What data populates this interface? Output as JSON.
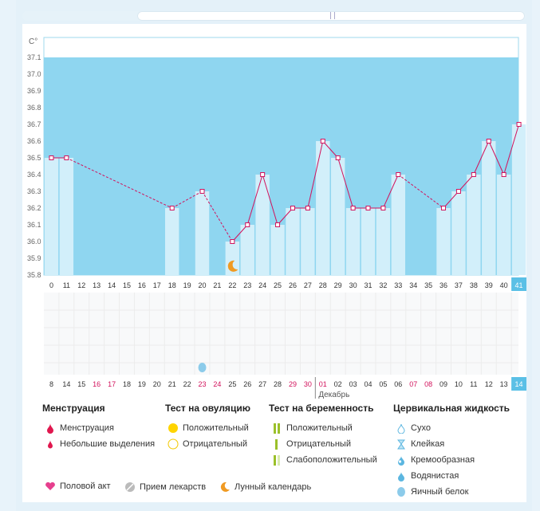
{
  "chart_data": {
    "type": "line",
    "title": "",
    "ylabel": "C°",
    "ylim": [
      35.8,
      37.2
    ],
    "yticks": [
      "35.8",
      "35.9",
      "36.0",
      "36.1",
      "36.2",
      "36.3",
      "36.4",
      "36.5",
      "36.6",
      "36.7",
      "36.8",
      "36.9",
      "37.0",
      "37.1"
    ],
    "cycle_days": [
      "0",
      "11",
      "12",
      "13",
      "14",
      "15",
      "16",
      "17",
      "18",
      "19",
      "20",
      "21",
      "22",
      "23",
      "24",
      "25",
      "26",
      "27",
      "28",
      "29",
      "30",
      "31",
      "32",
      "33",
      "34",
      "35",
      "36",
      "37",
      "38",
      "39",
      "40",
      "41"
    ],
    "dates": [
      "8",
      "14",
      "15",
      "16",
      "17",
      "18",
      "19",
      "20",
      "21",
      "22",
      "23",
      "24",
      "25",
      "26",
      "27",
      "28",
      "29",
      "30",
      "01",
      "02",
      "03",
      "04",
      "05",
      "06",
      "07",
      "08",
      "09",
      "10",
      "11",
      "12",
      "13",
      "14"
    ],
    "weekend_dates_idx": [
      3,
      4,
      10,
      11,
      16,
      17,
      18,
      24,
      25
    ],
    "month_label": "Декабрь",
    "month_start_idx": 18,
    "values": [
      36.5,
      36.5,
      null,
      null,
      null,
      null,
      null,
      null,
      36.2,
      null,
      36.3,
      null,
      36.0,
      36.1,
      36.4,
      36.1,
      36.2,
      36.2,
      36.6,
      36.5,
      36.2,
      36.2,
      36.2,
      36.4,
      null,
      null,
      36.2,
      36.3,
      36.4,
      36.6,
      36.4,
      36.7
    ],
    "moon_idx": 12,
    "drop_idx": 10,
    "highlight_idx": 31
  },
  "legend": {
    "menstruation": {
      "title": "Менструация",
      "items": [
        "Менструация",
        "Небольшие выделения"
      ]
    },
    "ovulation": {
      "title": "Тест на овуляцию",
      "items": [
        "Положительный",
        "Отрицательный"
      ]
    },
    "pregnancy": {
      "title": "Тест на беременность",
      "items": [
        "Положительный",
        "Отрицательный",
        "Слабоположительный"
      ]
    },
    "cervical": {
      "title": "Цервикальная жидкость",
      "items": [
        "Сухо",
        "Клейкая",
        "Кремообразная",
        "Водянистая",
        "Яичный белок"
      ]
    },
    "footer": [
      "Половой акт",
      "Прием лекарств",
      "Лунный календарь"
    ]
  },
  "colors": {
    "band": "#8fd6f0",
    "bar": "#d2effa",
    "line": "#d2125c",
    "weekend": "#d2125c",
    "highlight": "#5bc0e6"
  }
}
